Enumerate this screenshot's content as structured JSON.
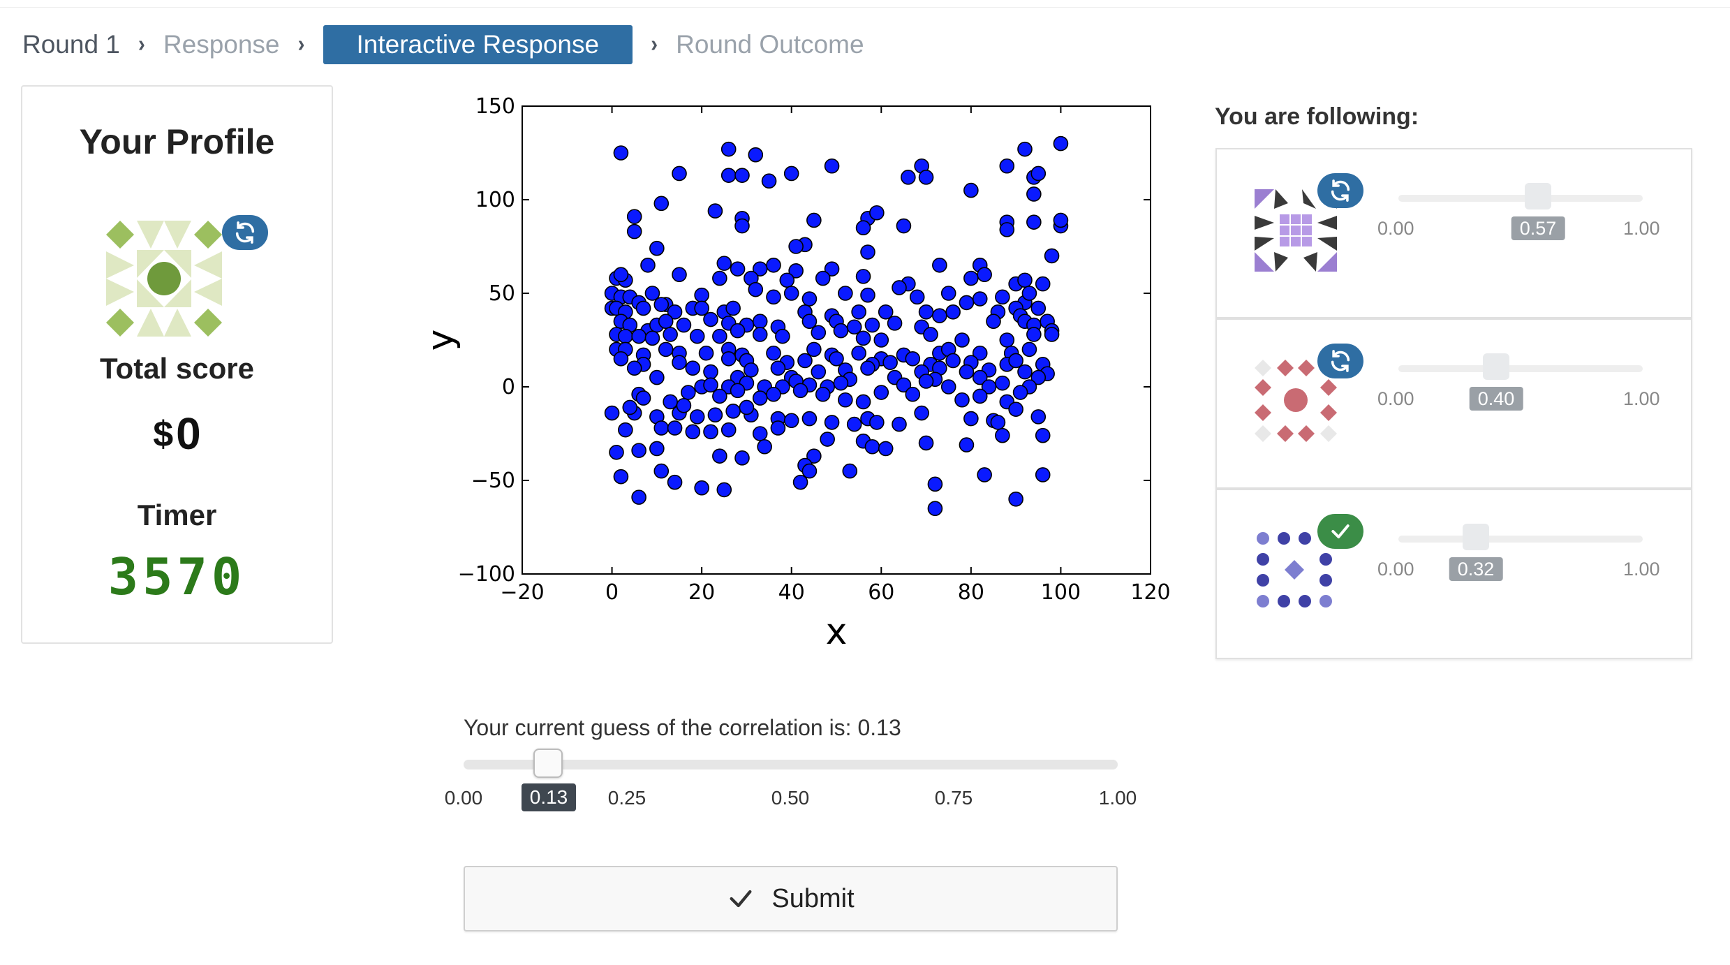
{
  "breadcrumb": {
    "items": [
      "Round 1",
      "Response",
      "Interactive Response",
      "Round Outcome"
    ],
    "active_index": 2
  },
  "profile": {
    "title": "Your Profile",
    "total_score_label": "Total score",
    "currency": "$",
    "total_score": "0",
    "timer_label": "Timer",
    "timer_value": "3570",
    "avatar_icon": "geometric-avatar-green",
    "badge_icon": "refresh-icon"
  },
  "following": {
    "title": "You are following:",
    "items": [
      {
        "avatar_icon": "geometric-avatar-purple",
        "badge_icon": "refresh-icon",
        "min": "0.00",
        "max": "1.00",
        "value": 0.57,
        "value_label": "0.57"
      },
      {
        "avatar_icon": "geometric-avatar-red",
        "badge_icon": "refresh-icon",
        "min": "0.00",
        "max": "1.00",
        "value": 0.4,
        "value_label": "0.40"
      },
      {
        "avatar_icon": "geometric-avatar-blue",
        "badge_icon": "check-icon",
        "min": "0.00",
        "max": "1.00",
        "value": 0.32,
        "value_label": "0.32"
      }
    ]
  },
  "guess": {
    "label": "Your current guess of the correlation is: 0.13",
    "value": 0.13,
    "value_label": "0.13",
    "ticks": [
      "0.00",
      "0.25",
      "0.50",
      "0.75",
      "1.00"
    ]
  },
  "submit": {
    "label": "Submit",
    "icon": "check-icon"
  },
  "colors": {
    "accent": "#2f6ea3",
    "timer": "#2c7a1a",
    "points": "#0a1aff"
  },
  "chart_data": {
    "type": "scatter",
    "xlabel": "x",
    "ylabel": "y",
    "xlim": [
      -20,
      120
    ],
    "ylim": [
      -100,
      150
    ],
    "xticks": [
      "−20",
      "0",
      "20",
      "40",
      "60",
      "80",
      "100",
      "120"
    ],
    "yticks": [
      "−100",
      "−50",
      "0",
      "50",
      "100",
      "150"
    ],
    "points": [
      [
        2,
        125
      ],
      [
        26,
        127
      ],
      [
        32,
        124
      ],
      [
        49,
        118
      ],
      [
        69,
        118
      ],
      [
        92,
        127
      ],
      [
        100,
        130
      ],
      [
        15,
        114
      ],
      [
        26,
        113
      ],
      [
        29,
        113
      ],
      [
        35,
        110
      ],
      [
        40,
        114
      ],
      [
        66,
        112
      ],
      [
        70,
        112
      ],
      [
        88,
        118
      ],
      [
        94,
        112
      ],
      [
        95,
        114
      ],
      [
        80,
        105
      ],
      [
        94,
        103
      ],
      [
        11,
        98
      ],
      [
        5,
        91
      ],
      [
        23,
        94
      ],
      [
        29,
        90
      ],
      [
        57,
        90
      ],
      [
        59,
        93
      ],
      [
        45,
        89
      ],
      [
        5,
        83
      ],
      [
        29,
        86
      ],
      [
        56,
        85
      ],
      [
        65,
        86
      ],
      [
        88,
        88
      ],
      [
        88,
        84
      ],
      [
        94,
        88
      ],
      [
        100,
        86
      ],
      [
        100,
        89
      ],
      [
        43,
        76
      ],
      [
        41,
        75
      ],
      [
        10,
        74
      ],
      [
        57,
        72
      ],
      [
        98,
        70
      ],
      [
        8,
        65
      ],
      [
        33,
        63
      ],
      [
        25,
        66
      ],
      [
        28,
        63
      ],
      [
        36,
        65
      ],
      [
        41,
        62
      ],
      [
        49,
        63
      ],
      [
        73,
        65
      ],
      [
        82,
        65
      ],
      [
        1,
        58
      ],
      [
        3,
        57
      ],
      [
        2,
        60
      ],
      [
        15,
        60
      ],
      [
        24,
        58
      ],
      [
        31,
        58
      ],
      [
        39,
        57
      ],
      [
        47,
        58
      ],
      [
        56,
        59
      ],
      [
        66,
        55
      ],
      [
        80,
        58
      ],
      [
        83,
        60
      ],
      [
        90,
        55
      ],
      [
        92,
        57
      ],
      [
        96,
        55
      ],
      [
        0,
        50
      ],
      [
        2,
        48
      ],
      [
        4,
        48
      ],
      [
        6,
        45
      ],
      [
        9,
        50
      ],
      [
        12,
        44
      ],
      [
        20,
        49
      ],
      [
        32,
        52
      ],
      [
        36,
        48
      ],
      [
        40,
        50
      ],
      [
        44,
        47
      ],
      [
        52,
        50
      ],
      [
        57,
        49
      ],
      [
        64,
        53
      ],
      [
        68,
        48
      ],
      [
        75,
        50
      ],
      [
        79,
        45
      ],
      [
        82,
        47
      ],
      [
        87,
        48
      ],
      [
        92,
        45
      ],
      [
        93,
        50
      ],
      [
        95,
        42
      ],
      [
        0,
        42
      ],
      [
        1,
        42
      ],
      [
        3,
        40
      ],
      [
        7,
        42
      ],
      [
        11,
        44
      ],
      [
        14,
        40
      ],
      [
        18,
        42
      ],
      [
        20,
        42
      ],
      [
        25,
        40
      ],
      [
        27,
        42
      ],
      [
        43,
        40
      ],
      [
        49,
        38
      ],
      [
        55,
        40
      ],
      [
        61,
        40
      ],
      [
        70,
        40
      ],
      [
        76,
        40
      ],
      [
        86,
        40
      ],
      [
        90,
        42
      ],
      [
        91,
        38
      ],
      [
        2,
        35
      ],
      [
        4,
        33
      ],
      [
        8,
        30
      ],
      [
        10,
        33
      ],
      [
        12,
        35
      ],
      [
        16,
        33
      ],
      [
        22,
        36
      ],
      [
        26,
        34
      ],
      [
        30,
        33
      ],
      [
        33,
        35
      ],
      [
        37,
        32
      ],
      [
        44,
        35
      ],
      [
        50,
        35
      ],
      [
        54,
        32
      ],
      [
        58,
        33
      ],
      [
        63,
        34
      ],
      [
        69,
        32
      ],
      [
        73,
        38
      ],
      [
        85,
        35
      ],
      [
        92,
        35
      ],
      [
        94,
        33
      ],
      [
        97,
        35
      ],
      [
        98,
        30
      ],
      [
        1,
        28
      ],
      [
        3,
        27
      ],
      [
        6,
        27
      ],
      [
        9,
        26
      ],
      [
        13,
        28
      ],
      [
        19,
        27
      ],
      [
        24,
        27
      ],
      [
        28,
        30
      ],
      [
        33,
        28
      ],
      [
        38,
        27
      ],
      [
        46,
        29
      ],
      [
        51,
        30
      ],
      [
        56,
        26
      ],
      [
        60,
        25
      ],
      [
        71,
        28
      ],
      [
        78,
        25
      ],
      [
        88,
        25
      ],
      [
        94,
        28
      ],
      [
        98,
        28
      ],
      [
        1,
        20
      ],
      [
        3,
        20
      ],
      [
        7,
        17
      ],
      [
        12,
        20
      ],
      [
        15,
        18
      ],
      [
        21,
        18
      ],
      [
        26,
        20
      ],
      [
        29,
        17
      ],
      [
        36,
        18
      ],
      [
        45,
        20
      ],
      [
        49,
        17
      ],
      [
        55,
        18
      ],
      [
        60,
        15
      ],
      [
        65,
        17
      ],
      [
        73,
        18
      ],
      [
        75,
        20
      ],
      [
        82,
        18
      ],
      [
        89,
        18
      ],
      [
        93,
        20
      ],
      [
        2,
        15
      ],
      [
        7,
        12
      ],
      [
        15,
        13
      ],
      [
        26,
        15
      ],
      [
        30,
        14
      ],
      [
        39,
        13
      ],
      [
        43,
        14
      ],
      [
        50,
        15
      ],
      [
        58,
        12
      ],
      [
        62,
        13
      ],
      [
        67,
        15
      ],
      [
        71,
        12
      ],
      [
        76,
        14
      ],
      [
        80,
        13
      ],
      [
        88,
        12
      ],
      [
        90,
        14
      ],
      [
        96,
        12
      ],
      [
        5,
        10
      ],
      [
        18,
        10
      ],
      [
        22,
        8
      ],
      [
        31,
        9
      ],
      [
        37,
        10
      ],
      [
        46,
        8
      ],
      [
        52,
        9
      ],
      [
        57,
        10
      ],
      [
        69,
        8
      ],
      [
        73,
        10
      ],
      [
        79,
        8
      ],
      [
        84,
        9
      ],
      [
        92,
        8
      ],
      [
        97,
        7
      ],
      [
        10,
        5
      ],
      [
        28,
        5
      ],
      [
        40,
        5
      ],
      [
        53,
        4
      ],
      [
        63,
        5
      ],
      [
        72,
        4
      ],
      [
        82,
        5
      ],
      [
        95,
        5
      ],
      [
        20,
        0
      ],
      [
        22,
        1
      ],
      [
        26,
        0
      ],
      [
        30,
        2
      ],
      [
        34,
        0
      ],
      [
        38,
        0
      ],
      [
        41,
        3
      ],
      [
        44,
        1
      ],
      [
        48,
        0
      ],
      [
        51,
        2
      ],
      [
        65,
        1
      ],
      [
        70,
        3
      ],
      [
        75,
        0
      ],
      [
        84,
        0
      ],
      [
        87,
        2
      ],
      [
        93,
        0
      ],
      [
        6,
        -4
      ],
      [
        13,
        -8
      ],
      [
        17,
        -3
      ],
      [
        24,
        -5
      ],
      [
        28,
        -2
      ],
      [
        33,
        -6
      ],
      [
        36,
        -4
      ],
      [
        42,
        -2
      ],
      [
        47,
        -4
      ],
      [
        52,
        -7
      ],
      [
        56,
        -8
      ],
      [
        60,
        -3
      ],
      [
        67,
        -4
      ],
      [
        78,
        -7
      ],
      [
        82,
        -5
      ],
      [
        88,
        -8
      ],
      [
        91,
        -3
      ],
      [
        0,
        -14
      ],
      [
        5,
        -14
      ],
      [
        10,
        -16
      ],
      [
        15,
        -14
      ],
      [
        19,
        -16
      ],
      [
        23,
        -15
      ],
      [
        27,
        -13
      ],
      [
        31,
        -15
      ],
      [
        37,
        -17
      ],
      [
        40,
        -18
      ],
      [
        44,
        -17
      ],
      [
        49,
        -19
      ],
      [
        54,
        -20
      ],
      [
        57,
        -17
      ],
      [
        69,
        -14
      ],
      [
        80,
        -17
      ],
      [
        85,
        -18
      ],
      [
        90,
        -12
      ],
      [
        95,
        -16
      ],
      [
        3,
        -23
      ],
      [
        11,
        -22
      ],
      [
        14,
        -22
      ],
      [
        18,
        -24
      ],
      [
        22,
        -24
      ],
      [
        26,
        -23
      ],
      [
        33,
        -25
      ],
      [
        37,
        -22
      ],
      [
        48,
        -28
      ],
      [
        56,
        -29
      ],
      [
        58,
        -32
      ],
      [
        61,
        -33
      ],
      [
        70,
        -30
      ],
      [
        79,
        -31
      ],
      [
        87,
        -26
      ],
      [
        96,
        -26
      ],
      [
        1,
        -35
      ],
      [
        6,
        -34
      ],
      [
        10,
        -33
      ],
      [
        24,
        -37
      ],
      [
        29,
        -38
      ],
      [
        45,
        -37
      ],
      [
        2,
        -48
      ],
      [
        11,
        -45
      ],
      [
        14,
        -51
      ],
      [
        20,
        -54
      ],
      [
        25,
        -55
      ],
      [
        43,
        -42
      ],
      [
        44,
        -45
      ],
      [
        53,
        -45
      ],
      [
        42,
        -51
      ],
      [
        72,
        -52
      ],
      [
        83,
        -47
      ],
      [
        96,
        -47
      ],
      [
        6,
        -59
      ],
      [
        72,
        -65
      ],
      [
        90,
        -60
      ],
      [
        34,
        -32
      ],
      [
        59,
        -19
      ],
      [
        16,
        -10
      ],
      [
        4,
        -11
      ],
      [
        64,
        -20
      ],
      [
        86,
        -19
      ],
      [
        30,
        -11
      ],
      [
        7,
        -6
      ]
    ]
  }
}
